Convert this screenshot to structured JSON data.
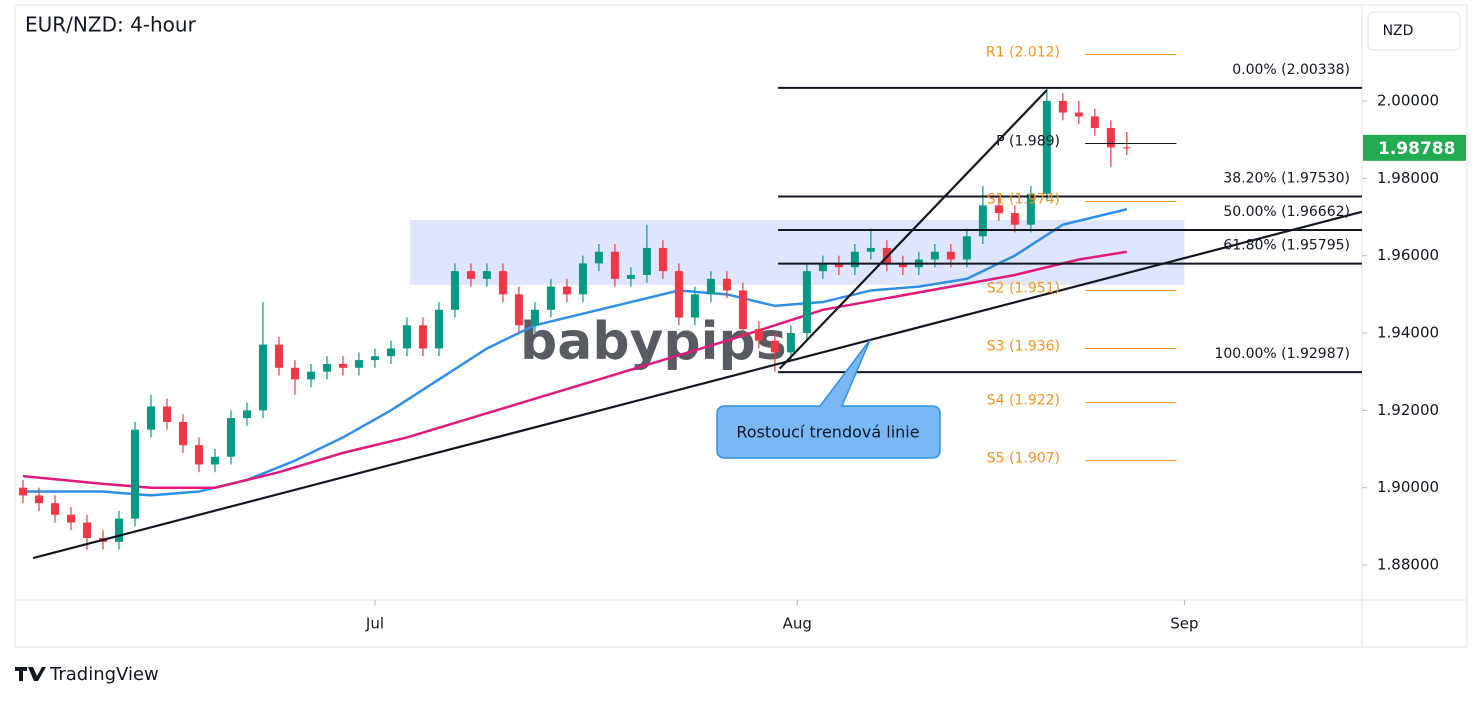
{
  "chart_data": {
    "type": "candlestick",
    "title": "EUR/NZD: 4-hour",
    "currency": "NZD",
    "watermark": "babypips",
    "footer": "TradingView",
    "x": [
      0,
      1,
      2,
      3,
      4,
      5,
      6,
      7,
      8,
      9,
      10,
      11,
      12,
      13,
      14,
      15,
      16,
      17,
      18,
      19,
      20,
      21,
      22,
      23,
      24,
      25,
      26,
      27,
      28,
      29,
      30,
      31,
      32,
      33,
      34,
      35,
      36,
      37,
      38,
      39,
      40,
      41,
      42,
      43,
      44,
      45,
      46,
      47,
      48,
      49,
      50,
      51,
      52,
      53,
      54,
      55,
      56,
      57,
      58,
      59,
      60,
      61,
      62,
      63,
      64,
      65,
      66,
      67,
      68,
      69
    ],
    "open": [
      1.9,
      1.898,
      1.896,
      1.893,
      1.891,
      1.887,
      1.886,
      1.892,
      1.915,
      1.921,
      1.917,
      1.911,
      1.906,
      1.908,
      1.918,
      1.92,
      1.937,
      1.931,
      1.928,
      1.93,
      1.932,
      1.931,
      1.933,
      1.934,
      1.936,
      1.942,
      1.936,
      1.946,
      1.956,
      1.954,
      1.956,
      1.95,
      1.942,
      1.946,
      1.952,
      1.95,
      1.958,
      1.961,
      1.954,
      1.955,
      1.962,
      1.956,
      1.944,
      1.95,
      1.954,
      1.951,
      1.941,
      1.938,
      1.935,
      1.94,
      1.956,
      1.958,
      1.957,
      1.961,
      1.962,
      1.958,
      1.957,
      1.959,
      1.961,
      1.959,
      1.965,
      1.973,
      1.971,
      1.968,
      1.976,
      2.0,
      1.997,
      1.996,
      1.993,
      1.988
    ],
    "high": [
      1.902,
      1.9,
      1.898,
      1.895,
      1.893,
      1.889,
      1.894,
      1.917,
      1.924,
      1.923,
      1.919,
      1.913,
      1.91,
      1.92,
      1.922,
      1.948,
      1.939,
      1.933,
      1.932,
      1.934,
      1.934,
      1.935,
      1.936,
      1.938,
      1.944,
      1.944,
      1.948,
      1.958,
      1.958,
      1.958,
      1.958,
      1.952,
      1.948,
      1.954,
      1.954,
      1.96,
      1.963,
      1.963,
      1.957,
      1.968,
      1.964,
      1.958,
      1.952,
      1.956,
      1.956,
      1.953,
      1.943,
      1.94,
      1.942,
      1.958,
      1.96,
      1.96,
      1.963,
      1.967,
      1.964,
      1.96,
      1.961,
      1.963,
      1.963,
      1.967,
      1.978,
      1.975,
      1.973,
      1.978,
      2.00338,
      2.002,
      2.0,
      1.998,
      1.995,
      1.992
    ],
    "low": [
      1.896,
      1.894,
      1.891,
      1.889,
      1.884,
      1.884,
      1.884,
      1.89,
      1.913,
      1.915,
      1.909,
      1.904,
      1.904,
      1.906,
      1.916,
      1.918,
      1.929,
      1.924,
      1.926,
      1.928,
      1.929,
      1.929,
      1.931,
      1.932,
      1.934,
      1.934,
      1.934,
      1.944,
      1.952,
      1.952,
      1.948,
      1.94,
      1.94,
      1.944,
      1.948,
      1.948,
      1.956,
      1.952,
      1.952,
      1.953,
      1.954,
      1.942,
      1.942,
      1.948,
      1.949,
      1.939,
      1.936,
      1.93,
      1.933,
      1.938,
      1.954,
      1.955,
      1.955,
      1.959,
      1.956,
      1.955,
      1.955,
      1.957,
      1.957,
      1.957,
      1.963,
      1.969,
      1.966,
      1.966,
      1.974,
      1.995,
      1.994,
      1.991,
      1.983,
      1.986
    ],
    "close": [
      1.898,
      1.896,
      1.893,
      1.891,
      1.887,
      1.886,
      1.892,
      1.915,
      1.921,
      1.917,
      1.911,
      1.906,
      1.908,
      1.918,
      1.92,
      1.937,
      1.931,
      1.928,
      1.93,
      1.932,
      1.931,
      1.933,
      1.934,
      1.936,
      1.942,
      1.936,
      1.946,
      1.956,
      1.954,
      1.956,
      1.95,
      1.942,
      1.946,
      1.952,
      1.95,
      1.958,
      1.961,
      1.954,
      1.955,
      1.962,
      1.956,
      1.944,
      1.95,
      1.954,
      1.951,
      1.941,
      1.938,
      1.935,
      1.94,
      1.956,
      1.958,
      1.957,
      1.961,
      1.962,
      1.958,
      1.957,
      1.959,
      1.961,
      1.959,
      1.965,
      1.973,
      1.971,
      1.968,
      1.976,
      2.0,
      1.997,
      1.996,
      1.993,
      1.988,
      1.98788
    ],
    "up_color": "#089981",
    "down_color": "#f23645",
    "last_price": {
      "value": 1.98788,
      "label": "1.98788"
    },
    "last_price_color": "#22ab50",
    "moving_averages": [
      {
        "color": "#2f8fe6",
        "x": [
          0,
          5,
          8,
          11,
          14,
          17,
          20,
          23,
          26,
          29,
          32,
          35,
          38,
          41,
          44,
          47,
          50,
          53,
          56,
          59,
          62,
          65,
          69
        ],
        "values": [
          1.899,
          1.899,
          1.898,
          1.899,
          1.902,
          1.907,
          1.913,
          1.92,
          1.928,
          1.936,
          1.942,
          1.945,
          1.948,
          1.951,
          1.95,
          1.947,
          1.948,
          1.951,
          1.952,
          1.954,
          1.96,
          1.968,
          1.972
        ]
      },
      {
        "color": "#e0197d",
        "x": [
          0,
          5,
          8,
          12,
          16,
          20,
          24,
          28,
          32,
          36,
          40,
          44,
          47,
          50,
          54,
          58,
          62,
          66,
          69
        ],
        "values": [
          1.903,
          1.901,
          1.9,
          1.9,
          1.904,
          1.909,
          1.913,
          1.918,
          1.923,
          1.928,
          1.933,
          1.938,
          1.942,
          1.946,
          1.949,
          1.952,
          1.955,
          1.959,
          1.961
        ]
      }
    ],
    "zone": {
      "x": [
        24.2,
        72.6
      ],
      "values": [
        1.95245,
        1.96925
      ],
      "color": "#c9d4fb"
    },
    "trendlines": [
      {
        "x": [
          0.625,
          83.69
        ],
        "values": [
          1.8818,
          1.97132
        ],
        "color": "#131722"
      },
      {
        "x": [
          47.3,
          64.0
        ],
        "values": [
          1.9308,
          2.0028
        ],
        "color": "#131722"
      }
    ],
    "fib_start": 47.2,
    "fib_levels": [
      {
        "label": "0.00% (2.00338)",
        "value": 2.00338
      },
      {
        "label": "38.20% (1.97530)",
        "value": 1.9753
      },
      {
        "label": "50.00% (1.96662)",
        "value": 1.96662
      },
      {
        "label": "61.80% (1.95795)",
        "value": 1.95795
      },
      {
        "label": "100.00% (1.92987)",
        "value": 1.92987
      }
    ],
    "pivot_x": [
      66.4,
      72.1
    ],
    "pivots": [
      {
        "label": "R1 (2.012)",
        "value": 2.012,
        "color": "#f7931a"
      },
      {
        "label": "P (1.989)",
        "value": 1.989,
        "color": "#131722"
      },
      {
        "label": "S1 (1.974)",
        "value": 1.974,
        "color": "#f7931a"
      },
      {
        "label": "S2 (1.951)",
        "value": 1.951,
        "color": "#f7931a"
      },
      {
        "label": "S3 (1.936)",
        "value": 1.936,
        "color": "#f7931a"
      },
      {
        "label": "S4 (1.922)",
        "value": 1.922,
        "color": "#f7931a"
      },
      {
        "label": "S5 (1.907)",
        "value": 1.907,
        "color": "#f7931a"
      }
    ],
    "annotation": "Rostoucí trendová linie",
    "xlim": [
      -0.5,
      83.7
    ],
    "xticks": [
      {
        "value": 22,
        "label": "Jul"
      },
      {
        "value": 48.4,
        "label": "Aug"
      },
      {
        "value": 72.6,
        "label": "Sep"
      }
    ],
    "ylim": [
      1.87096,
      2.02481
    ],
    "yticks": [
      {
        "value": 1.88,
        "label": "1.88000"
      },
      {
        "value": 1.9,
        "label": "1.90000"
      },
      {
        "value": 1.92,
        "label": "1.92000"
      },
      {
        "value": 1.94,
        "label": "1.94000"
      },
      {
        "value": 1.96,
        "label": "1.96000"
      },
      {
        "value": 1.98,
        "label": "1.98000"
      },
      {
        "value": 2.0,
        "label": "2.00000"
      }
    ]
  }
}
